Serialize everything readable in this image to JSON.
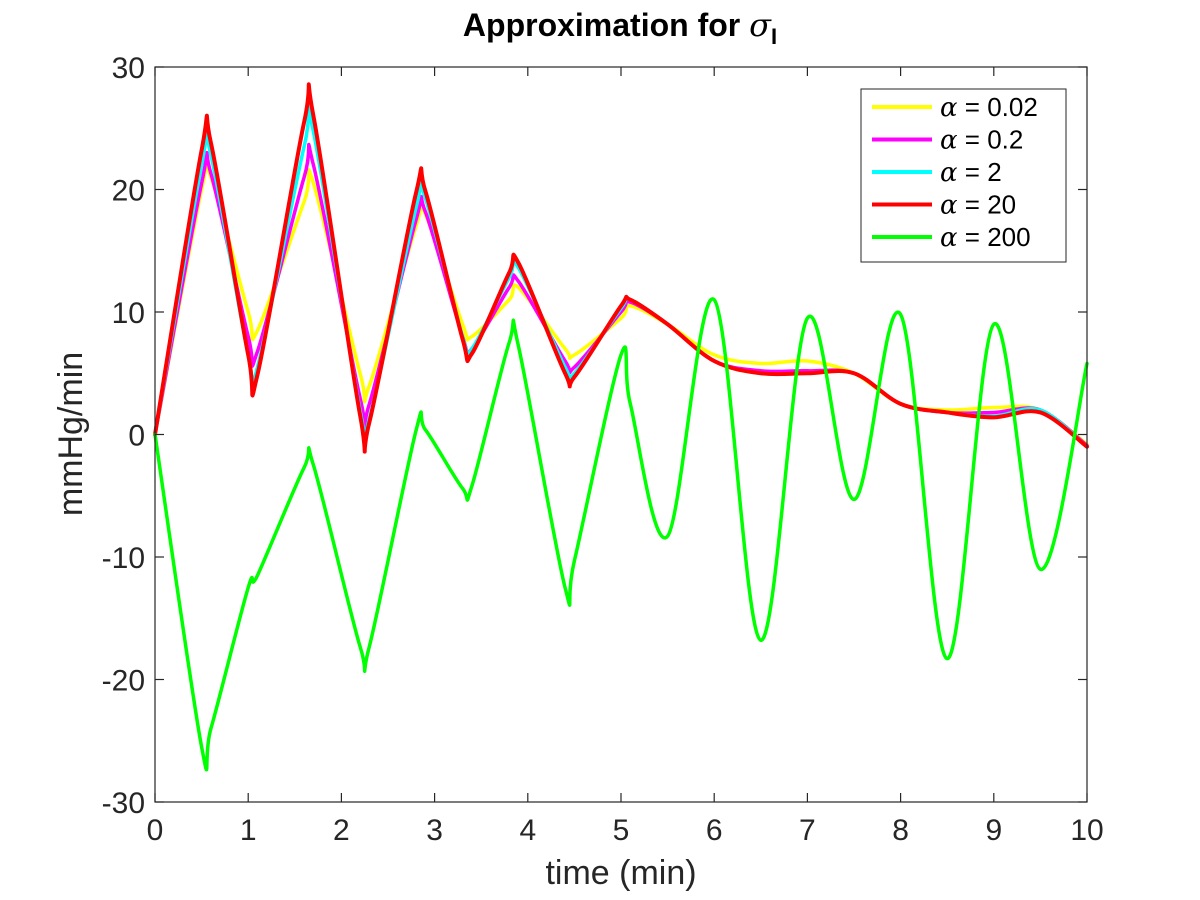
{
  "chart_data": {
    "type": "line",
    "title_prefix": "Approximation for ",
    "title_symbol": "σ",
    "title_subscript": "I",
    "xlabel": "time (min)",
    "ylabel": "mmHg/min",
    "xlim": [
      0,
      10
    ],
    "ylim": [
      -30,
      30
    ],
    "xticks": [
      0,
      1,
      2,
      3,
      4,
      5,
      6,
      7,
      8,
      9,
      10
    ],
    "yticks": [
      -30,
      -20,
      -10,
      0,
      10,
      20,
      30
    ],
    "grid": false,
    "legend_position": "top-right",
    "x": [
      0,
      0.5,
      0.6,
      1.0,
      1.1,
      1.6,
      1.7,
      2.2,
      2.3,
      2.8,
      2.9,
      3.3,
      3.4,
      3.8,
      3.9,
      4.4,
      4.5,
      5.0,
      5.1,
      5.5,
      6.0,
      6.5,
      7.0,
      7.5,
      8.0,
      8.5,
      9.0,
      9.5,
      10.0
    ],
    "series": [
      {
        "name": "α = 0.02",
        "symbol": "α",
        "value_text": " = 0.02",
        "color": "#ffff00",
        "values": [
          0,
          20,
          21,
          10,
          8.5,
          19,
          20.5,
          5,
          4,
          17,
          18,
          9,
          8,
          11,
          12,
          7,
          6.5,
          9.5,
          10.5,
          9,
          6.5,
          5.8,
          6,
          5,
          2.5,
          2,
          2.2,
          2,
          -0.8
        ]
      },
      {
        "name": "α = 0.2",
        "symbol": "α",
        "value_text": " = 0.2",
        "color": "#ff00ff",
        "values": [
          0,
          20.5,
          21.3,
          8,
          6.8,
          21,
          22,
          3,
          2.5,
          17.5,
          18.2,
          8,
          7,
          12,
          12.5,
          6,
          5.5,
          10,
          10.8,
          9,
          6,
          5.2,
          5.2,
          5,
          2.5,
          1.8,
          1.8,
          2,
          -0.9
        ]
      },
      {
        "name": "α = 2",
        "symbol": "α",
        "value_text": " = 2",
        "color": "#00ffff",
        "values": [
          0,
          22,
          22.8,
          6.5,
          5.5,
          23.5,
          24.7,
          2,
          1.3,
          18.5,
          19.3,
          8,
          7,
          12.8,
          13.6,
          5.5,
          5,
          10.3,
          11,
          9,
          6,
          5,
          5,
          5,
          2.5,
          1.8,
          1.5,
          2,
          -1
        ]
      },
      {
        "name": "α = 20",
        "symbol": "α",
        "value_text": " = 20",
        "color": "#ff0000",
        "values": [
          0,
          23.2,
          23.8,
          6.5,
          4.9,
          25.5,
          26,
          1.6,
          1,
          19.7,
          19.9,
          7.8,
          6.6,
          13.2,
          14,
          5,
          4.7,
          10.5,
          11,
          9,
          6,
          5,
          5,
          5,
          2.5,
          1.8,
          1.4,
          1.8,
          -1
        ]
      },
      {
        "name": "α = 200",
        "symbol": "α",
        "value_text": " = 200",
        "color": "#00ff00",
        "values": [
          0,
          -25.5,
          -24,
          -12.5,
          -11.5,
          -2.7,
          -2.5,
          -17.3,
          -17.3,
          0.3,
          0.4,
          -4.4,
          -4.2,
          7.5,
          7.2,
          -12.5,
          -10.3,
          6.5,
          2.5,
          -8.3,
          11,
          -16.8,
          9.5,
          -5.3,
          9.8,
          -18.3,
          9,
          -11,
          5.8
        ]
      }
    ]
  }
}
